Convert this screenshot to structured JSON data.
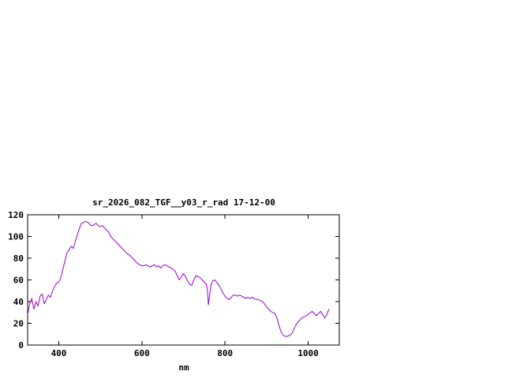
{
  "window": {
    "background_color": "#ffffff",
    "text_color": "#000000"
  },
  "chart_data": {
    "type": "line",
    "title": "sr_2026_082_TGF__y03_r_rad 17-12-00",
    "xlabel": "nm",
    "ylabel": "",
    "xlim": [
      325,
      1075
    ],
    "ylim": [
      0,
      120
    ],
    "xticks": [
      400,
      600,
      800,
      1000
    ],
    "yticks": [
      0,
      20,
      40,
      60,
      80,
      100,
      120
    ],
    "grid": false,
    "legend": "none",
    "line_color": "#9900cc",
    "axis_color": "#000000",
    "series": [
      {
        "points": [
          [
            325,
            28
          ],
          [
            330,
            38
          ],
          [
            335,
            43
          ],
          [
            340,
            33
          ],
          [
            345,
            40
          ],
          [
            350,
            36
          ],
          [
            355,
            45
          ],
          [
            360,
            47
          ],
          [
            365,
            38
          ],
          [
            370,
            42
          ],
          [
            375,
            46
          ],
          [
            380,
            44
          ],
          [
            385,
            50
          ],
          [
            390,
            54
          ],
          [
            395,
            57
          ],
          [
            400,
            58
          ],
          [
            405,
            62
          ],
          [
            410,
            70
          ],
          [
            415,
            78
          ],
          [
            420,
            85
          ],
          [
            425,
            88
          ],
          [
            430,
            91
          ],
          [
            435,
            89
          ],
          [
            440,
            96
          ],
          [
            445,
            102
          ],
          [
            450,
            108
          ],
          [
            455,
            112
          ],
          [
            460,
            113
          ],
          [
            465,
            114
          ],
          [
            470,
            113
          ],
          [
            475,
            111
          ],
          [
            480,
            110
          ],
          [
            485,
            111
          ],
          [
            490,
            112
          ],
          [
            495,
            110
          ],
          [
            500,
            109
          ],
          [
            505,
            110
          ],
          [
            510,
            108
          ],
          [
            515,
            106
          ],
          [
            520,
            104
          ],
          [
            525,
            100
          ],
          [
            530,
            98
          ],
          [
            535,
            96
          ],
          [
            540,
            94
          ],
          [
            545,
            92
          ],
          [
            550,
            90
          ],
          [
            555,
            88
          ],
          [
            560,
            86
          ],
          [
            565,
            84
          ],
          [
            570,
            83
          ],
          [
            575,
            81
          ],
          [
            580,
            79
          ],
          [
            585,
            77
          ],
          [
            590,
            75
          ],
          [
            595,
            74
          ],
          [
            600,
            73
          ],
          [
            605,
            73
          ],
          [
            610,
            74
          ],
          [
            615,
            73
          ],
          [
            620,
            72
          ],
          [
            625,
            73
          ],
          [
            630,
            74
          ],
          [
            635,
            72
          ],
          [
            640,
            73
          ],
          [
            645,
            71
          ],
          [
            650,
            73
          ],
          [
            655,
            74
          ],
          [
            660,
            73
          ],
          [
            665,
            72
          ],
          [
            670,
            71
          ],
          [
            675,
            70
          ],
          [
            680,
            68
          ],
          [
            685,
            64
          ],
          [
            690,
            60
          ],
          [
            695,
            63
          ],
          [
            700,
            66
          ],
          [
            705,
            63
          ],
          [
            710,
            59
          ],
          [
            715,
            56
          ],
          [
            720,
            55
          ],
          [
            725,
            60
          ],
          [
            730,
            64
          ],
          [
            735,
            63
          ],
          [
            740,
            62
          ],
          [
            745,
            60
          ],
          [
            750,
            58
          ],
          [
            755,
            56
          ],
          [
            758,
            50
          ],
          [
            760,
            37
          ],
          [
            763,
            46
          ],
          [
            766,
            55
          ],
          [
            770,
            59
          ],
          [
            775,
            60
          ],
          [
            780,
            58
          ],
          [
            785,
            55
          ],
          [
            790,
            52
          ],
          [
            795,
            48
          ],
          [
            800,
            45
          ],
          [
            805,
            43
          ],
          [
            810,
            42
          ],
          [
            815,
            44
          ],
          [
            820,
            46
          ],
          [
            825,
            46
          ],
          [
            830,
            45
          ],
          [
            835,
            46
          ],
          [
            840,
            45
          ],
          [
            845,
            44
          ],
          [
            850,
            43
          ],
          [
            855,
            44
          ],
          [
            860,
            43
          ],
          [
            865,
            44
          ],
          [
            870,
            43
          ],
          [
            875,
            42
          ],
          [
            880,
            42
          ],
          [
            885,
            41
          ],
          [
            890,
            40
          ],
          [
            895,
            38
          ],
          [
            900,
            35
          ],
          [
            905,
            33
          ],
          [
            910,
            31
          ],
          [
            915,
            30
          ],
          [
            920,
            29
          ],
          [
            925,
            25
          ],
          [
            930,
            18
          ],
          [
            935,
            12
          ],
          [
            940,
            9
          ],
          [
            945,
            8
          ],
          [
            950,
            8
          ],
          [
            955,
            9
          ],
          [
            960,
            10
          ],
          [
            965,
            14
          ],
          [
            970,
            18
          ],
          [
            975,
            21
          ],
          [
            980,
            23
          ],
          [
            985,
            25
          ],
          [
            990,
            26
          ],
          [
            995,
            27
          ],
          [
            1000,
            28
          ],
          [
            1005,
            30
          ],
          [
            1010,
            31
          ],
          [
            1015,
            29
          ],
          [
            1020,
            27
          ],
          [
            1025,
            29
          ],
          [
            1030,
            31
          ],
          [
            1035,
            28
          ],
          [
            1040,
            25
          ],
          [
            1045,
            28
          ],
          [
            1050,
            33
          ]
        ]
      }
    ]
  },
  "layout_note": ""
}
